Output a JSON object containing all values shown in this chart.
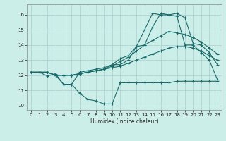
{
  "xlabel": "Humidex (Indice chaleur)",
  "bg_color": "#cceee8",
  "grid_color": "#aacccc",
  "line_color": "#1a6b6b",
  "xlim": [
    -0.5,
    23.5
  ],
  "ylim": [
    9.7,
    16.7
  ],
  "xticks": [
    0,
    1,
    2,
    3,
    4,
    5,
    6,
    7,
    8,
    9,
    10,
    11,
    12,
    13,
    14,
    15,
    16,
    17,
    18,
    19,
    20,
    21,
    22,
    23
  ],
  "yticks": [
    10,
    11,
    12,
    13,
    14,
    15,
    16
  ],
  "line1_x": [
    0,
    1,
    2,
    3,
    4,
    5,
    6,
    7,
    8,
    9,
    10,
    11,
    12,
    13,
    14,
    15,
    16,
    17,
    18,
    19,
    20,
    21,
    22,
    23
  ],
  "line1_y": [
    12.2,
    12.2,
    11.95,
    12.1,
    11.4,
    11.4,
    10.8,
    10.4,
    10.3,
    10.1,
    10.1,
    11.5,
    11.5,
    11.5,
    11.5,
    11.5,
    11.5,
    11.5,
    11.6,
    11.6,
    11.6,
    11.6,
    11.6,
    11.6
  ],
  "line2_x": [
    0,
    1,
    2,
    3,
    4,
    5,
    6,
    7,
    8,
    9,
    10,
    11,
    12,
    13,
    14,
    15,
    16,
    17,
    18,
    19,
    20,
    21,
    22,
    23
  ],
  "line2_y": [
    12.2,
    12.2,
    12.2,
    12.0,
    12.0,
    12.0,
    12.1,
    12.2,
    12.3,
    12.4,
    12.5,
    12.6,
    12.8,
    13.0,
    13.2,
    13.4,
    13.6,
    13.8,
    13.9,
    13.9,
    13.8,
    13.6,
    13.3,
    13.0
  ],
  "line3_x": [
    0,
    1,
    2,
    3,
    4,
    5,
    6,
    7,
    8,
    9,
    10,
    11,
    12,
    13,
    14,
    15,
    16,
    17,
    18,
    19,
    20,
    21,
    22,
    23
  ],
  "line3_y": [
    12.2,
    12.2,
    12.2,
    12.0,
    12.0,
    12.0,
    12.1,
    12.2,
    12.3,
    12.4,
    12.6,
    12.9,
    13.2,
    13.6,
    14.0,
    14.3,
    14.6,
    14.9,
    14.8,
    14.7,
    14.5,
    14.2,
    13.8,
    13.4
  ],
  "line4_x": [
    0,
    1,
    2,
    3,
    4,
    5,
    6,
    7,
    8,
    9,
    10,
    11,
    12,
    13,
    14,
    15,
    16,
    17,
    18,
    19,
    20,
    21,
    22,
    23
  ],
  "line4_y": [
    12.2,
    12.2,
    12.2,
    12.0,
    11.4,
    11.4,
    12.2,
    12.3,
    12.4,
    12.5,
    12.7,
    12.7,
    13.0,
    13.9,
    14.0,
    15.2,
    16.1,
    16.0,
    15.9,
    14.0,
    14.0,
    13.5,
    13.0,
    11.7
  ],
  "line5_x": [
    0,
    1,
    2,
    3,
    4,
    5,
    6,
    7,
    8,
    9,
    10,
    11,
    12,
    13,
    14,
    15,
    16,
    17,
    18,
    19,
    20,
    21,
    22,
    23
  ],
  "line5_y": [
    12.2,
    12.2,
    12.2,
    12.0,
    12.0,
    12.0,
    12.1,
    12.2,
    12.3,
    12.4,
    12.7,
    13.1,
    13.3,
    13.9,
    15.0,
    16.1,
    16.0,
    16.0,
    16.1,
    15.8,
    14.1,
    14.0,
    13.5,
    12.7
  ]
}
